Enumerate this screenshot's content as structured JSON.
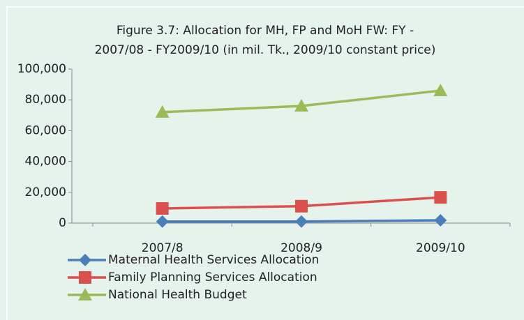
{
  "chart_data": {
    "type": "line",
    "title": [
      "Figure  3.7: Allocation for MH, FP and MoH FW: FY -",
      "2007/08 - FY2009/10  (in mil. Tk., 2009/10 constant price)"
    ],
    "categories": [
      "2007/8",
      "2008/9",
      "2009/10"
    ],
    "series": [
      {
        "name": "Maternal Health Services  Allocation",
        "color": "#4a7ebb",
        "marker": "diamond",
        "values": [
          1000,
          1000,
          1800
        ]
      },
      {
        "name": "Family Planning Services Allocation",
        "color": "#d9504c",
        "marker": "square",
        "values": [
          9500,
          11000,
          16700
        ]
      },
      {
        "name": "National Health Budget",
        "color": "#9bbb59",
        "marker": "triangle",
        "values": [
          72000,
          76000,
          86000
        ]
      }
    ],
    "ylim": [
      0,
      100000
    ],
    "yticks": [
      0,
      {
        "value": 20000,
        "label": "20,000"
      },
      {
        "value": 40000,
        "label": "40,000"
      },
      {
        "value": 60000,
        "label": "60,000"
      },
      {
        "value": 80000,
        "label": "80,000"
      },
      {
        "value": 100000,
        "label": "100,000"
      }
    ],
    "grid": false,
    "legend": "bottom"
  }
}
